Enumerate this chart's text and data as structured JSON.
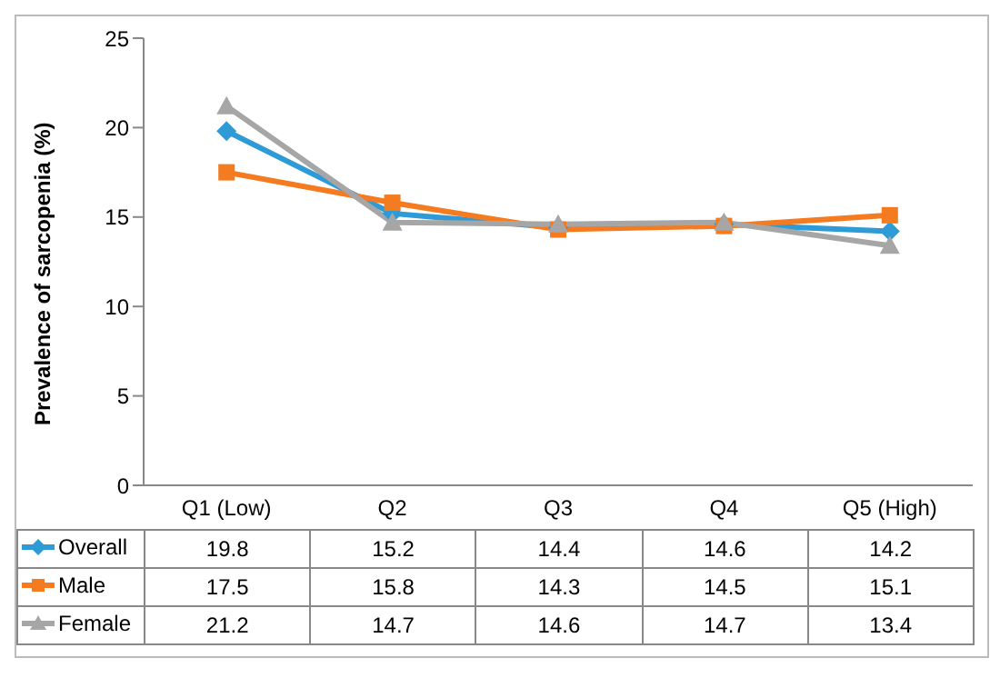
{
  "chart_data": {
    "type": "line",
    "ylabel": "Prevalence of sarcopenia (%)",
    "categories": [
      "Q1 (Low)",
      "Q2",
      "Q3",
      "Q4",
      "Q5 (High)"
    ],
    "series": [
      {
        "name": "Overall",
        "color": "#2e9bd6",
        "marker": "diamond",
        "values": [
          19.8,
          15.2,
          14.4,
          14.6,
          14.2
        ]
      },
      {
        "name": "Male",
        "color": "#f47b20",
        "marker": "square",
        "values": [
          17.5,
          15.8,
          14.3,
          14.5,
          15.1
        ]
      },
      {
        "name": "Female",
        "color": "#a6a6a6",
        "marker": "triangle",
        "values": [
          21.2,
          14.7,
          14.6,
          14.7,
          13.4
        ]
      }
    ],
    "ylim": [
      0,
      25
    ],
    "yticks": [
      0,
      5,
      10,
      15,
      20,
      25
    ],
    "grid": false,
    "legend": "bottom",
    "data_labels": true,
    "line_style": "solid"
  }
}
